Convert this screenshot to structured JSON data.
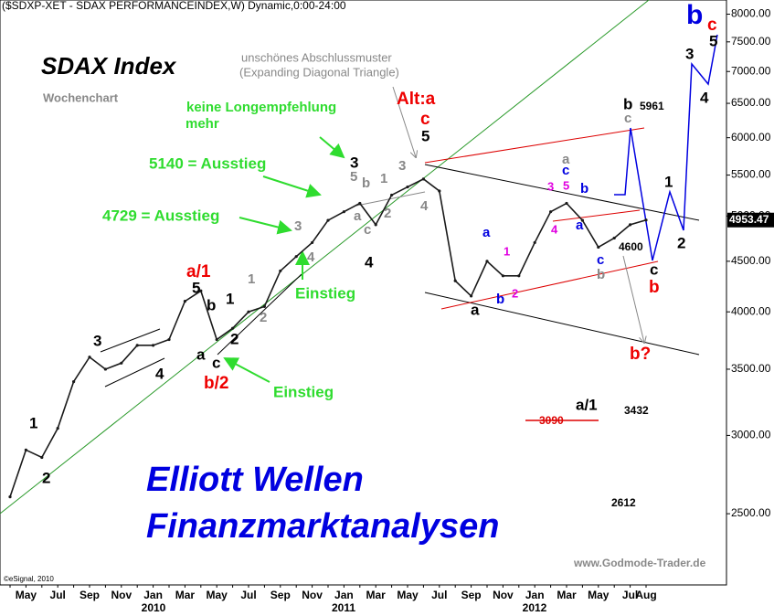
{
  "chart_data": {
    "type": "line",
    "title": "($SDXP-XET - SDAX PERFORMANCEINDEX,W) Dynamic,0:00-24:00",
    "categories": [
      null,
      "May",
      null,
      "Jul",
      null,
      "Sep",
      null,
      "Nov",
      null,
      "Jan",
      null,
      "Mar",
      null,
      "May",
      null,
      "Jul",
      null,
      "Sep",
      null,
      "Nov",
      null,
      "Jan",
      null,
      "Mar",
      null,
      "May",
      null,
      "Jul",
      null,
      "Sep",
      null,
      "Nov",
      null,
      "Jan",
      null,
      "Mar",
      null,
      "May",
      null,
      "Jul",
      "Aug"
    ],
    "year_labels": [
      "2010",
      "2011",
      "2012"
    ],
    "values": [
      2600,
      2900,
      2850,
      3050,
      3400,
      3600,
      3500,
      3550,
      3700,
      3700,
      3750,
      4100,
      4200,
      3750,
      3850,
      4000,
      4050,
      4400,
      4550,
      4700,
      4950,
      5050,
      5150,
      4900,
      5250,
      5350,
      5450,
      5300,
      4300,
      4150,
      4500,
      4350,
      4350,
      4700,
      5050,
      5150,
      4950,
      4650,
      4750,
      4900,
      4953.47
    ],
    "color": "#1a1a1a",
    "last_value": 4953.47,
    "log_scale": true,
    "ylim": [
      2118,
      8268
    ],
    "yticks": [
      {
        "value": 2500,
        "label": "2500.00"
      },
      {
        "value": 3000,
        "label": "3000.00"
      },
      {
        "value": 3500,
        "label": "3500.00"
      },
      {
        "value": 4000,
        "label": "4000.00"
      },
      {
        "value": 4500,
        "label": "4500.00"
      },
      {
        "value": 5000,
        "label": "5000.00"
      },
      {
        "value": 5500,
        "label": "5500.00"
      },
      {
        "value": 6000,
        "label": "6000.00"
      },
      {
        "value": 6500,
        "label": "6500.00"
      },
      {
        "value": 7000,
        "label": "7000.00"
      },
      {
        "value": 7500,
        "label": "7500.00"
      },
      {
        "value": 8000,
        "label": "8000.00"
      }
    ],
    "annotations": [
      "SDAX Index",
      "Wochenchart",
      "unschönes Abschlussmuster",
      "(Expanding Diagonal Triangle)",
      "keine Longempfehlung",
      "mehr",
      "5140 = Ausstieg",
      "4729 = Ausstieg",
      "Einstieg",
      "Einstieg",
      "Alt:a",
      "c",
      "5",
      "a/1",
      "b/2",
      "Elliott Wellen",
      "Finanzmarktanalysen",
      "www.Godmode-Trader.de",
      "©eSignal, 2010",
      "b",
      "c",
      "b",
      "5961",
      "c",
      "1",
      "2",
      "3",
      "4",
      "5",
      "c",
      "b",
      "b?",
      "a/1",
      "3432",
      "3090",
      "2612",
      "4600",
      "1",
      "2",
      "3",
      "4",
      "5",
      "b",
      "1",
      "a",
      "c",
      "2",
      "1",
      "2",
      "3",
      "4",
      "3",
      "5",
      "b",
      "a",
      "1",
      "2",
      "3",
      "4",
      "c",
      "4",
      "a",
      "b",
      "2",
      "a",
      "1",
      "3",
      "5",
      "4",
      "a",
      "c",
      "b",
      "a",
      "c",
      "b"
    ]
  }
}
